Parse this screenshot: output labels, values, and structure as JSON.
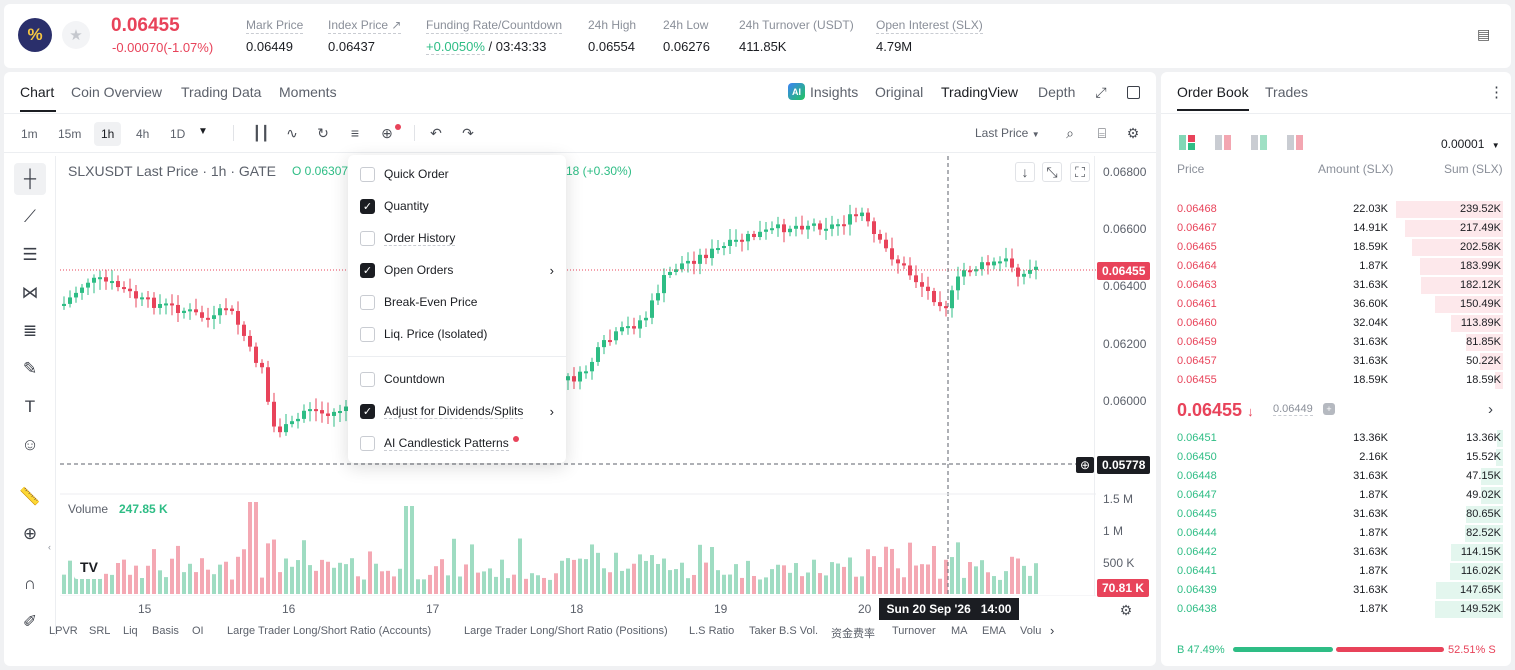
{
  "ticker": {
    "logo_glyph": "%",
    "last_price": "0.06455",
    "change": "-0.00070(-1.07%)",
    "stats": [
      {
        "label": "Mark Price",
        "value": "0.06449"
      },
      {
        "label": "Index Price ↗",
        "value": "0.06437"
      },
      {
        "label": "Funding Rate/Countdown",
        "value": "+0.0050%",
        "value2": " / 03:43:33"
      },
      {
        "label": "24h High",
        "value": "0.06554"
      },
      {
        "label": "24h Low",
        "value": "0.06276"
      },
      {
        "label": "24h Turnover (USDT)",
        "value": "411.85K"
      },
      {
        "label": "Open Interest (SLX)",
        "value": "4.79M"
      }
    ]
  },
  "chart_tabs": [
    "Chart",
    "Coin Overview",
    "Trading Data",
    "Moments"
  ],
  "view_tabs": {
    "insights": "Insights",
    "original": "Original",
    "tradingview": "TradingView",
    "depth": "Depth"
  },
  "timeframes": [
    "1m",
    "15m",
    "1h",
    "4h",
    "1D"
  ],
  "price_source": "Last Price",
  "legend": {
    "title": "SLXUSDT Last Price · 1h · GATE",
    "open": "O 0.06307",
    "change": "18 (+0.30%)"
  },
  "y_axis": [
    "0.06800",
    "0.06600",
    "0.06400",
    "0.06200",
    "0.06000",
    "0.05778"
  ],
  "current_price_tag": "0.06455",
  "crosshair_price_tag": "0.05778",
  "x_axis": [
    "15",
    "16",
    "17",
    "18",
    "19",
    "20"
  ],
  "crosshair_time": {
    "date": "Sun 20 Sep '26",
    "time": "14:00"
  },
  "volume": {
    "label": "Volume",
    "value": "247.85 K",
    "axis": [
      "1.5 M",
      "1 M",
      "500 K"
    ],
    "tag": "70.81 K"
  },
  "indicators": [
    "LPVR",
    "SRL",
    "Liq",
    "Basis",
    "OI",
    "Large Trader Long/Short Ratio (Accounts)",
    "Large Trader Long/Short Ratio (Positions)",
    "L.S Ratio",
    "Taker B.S Vol.",
    "资金费率",
    "Turnover",
    "MA",
    "EMA",
    "Volu"
  ],
  "menu": [
    {
      "label": "Quick Order",
      "checked": false,
      "arrow": false
    },
    {
      "label": "Quantity",
      "checked": true,
      "arrow": false
    },
    {
      "label": "Order History",
      "checked": false,
      "arrow": false
    },
    {
      "label": "Open Orders",
      "checked": true,
      "arrow": true
    },
    {
      "label": "Break-Even Price",
      "checked": false,
      "arrow": false
    },
    {
      "label": "Liq. Price (Isolated)",
      "checked": false,
      "arrow": false
    },
    {
      "label": "Countdown",
      "checked": false,
      "arrow": false
    },
    {
      "label": "Adjust for Dividends/Splits",
      "checked": true,
      "arrow": true
    },
    {
      "label": "AI Candlestick Patterns",
      "checked": false,
      "arrow": false
    }
  ],
  "orderbook": {
    "tabs": [
      "Order Book",
      "Trades"
    ],
    "precision": "0.00001",
    "headers": [
      "Price",
      "Amount (SLX)",
      "Sum (SLX)"
    ],
    "asks": [
      {
        "price": "0.06468",
        "amount": "22.03K",
        "sum": "239.52K",
        "depth": 0.93
      },
      {
        "price": "0.06467",
        "amount": "14.91K",
        "sum": "217.49K",
        "depth": 0.85
      },
      {
        "price": "0.06465",
        "amount": "18.59K",
        "sum": "202.58K",
        "depth": 0.79
      },
      {
        "price": "0.06464",
        "amount": "1.87K",
        "sum": "183.99K",
        "depth": 0.72
      },
      {
        "price": "0.06463",
        "amount": "31.63K",
        "sum": "182.12K",
        "depth": 0.71
      },
      {
        "price": "0.06461",
        "amount": "36.60K",
        "sum": "150.49K",
        "depth": 0.59
      },
      {
        "price": "0.06460",
        "amount": "32.04K",
        "sum": "113.89K",
        "depth": 0.45
      },
      {
        "price": "0.06459",
        "amount": "31.63K",
        "sum": "81.85K",
        "depth": 0.32
      },
      {
        "price": "0.06457",
        "amount": "31.63K",
        "sum": "50.22K",
        "depth": 0.2
      },
      {
        "price": "0.06455",
        "amount": "18.59K",
        "sum": "18.59K",
        "depth": 0.07
      }
    ],
    "mid_price": "0.06455",
    "mid_mark": "0.06449",
    "bids": [
      {
        "price": "0.06451",
        "amount": "13.36K",
        "sum": "13.36K",
        "depth": 0.05
      },
      {
        "price": "0.06450",
        "amount": "2.16K",
        "sum": "15.52K",
        "depth": 0.06
      },
      {
        "price": "0.06448",
        "amount": "31.63K",
        "sum": "47.15K",
        "depth": 0.19
      },
      {
        "price": "0.06447",
        "amount": "1.87K",
        "sum": "49.02K",
        "depth": 0.19
      },
      {
        "price": "0.06445",
        "amount": "31.63K",
        "sum": "80.65K",
        "depth": 0.32
      },
      {
        "price": "0.06444",
        "amount": "1.87K",
        "sum": "82.52K",
        "depth": 0.33
      },
      {
        "price": "0.06442",
        "amount": "31.63K",
        "sum": "114.15K",
        "depth": 0.45
      },
      {
        "price": "0.06441",
        "amount": "1.87K",
        "sum": "116.02K",
        "depth": 0.46
      },
      {
        "price": "0.06439",
        "amount": "31.63K",
        "sum": "147.65K",
        "depth": 0.58
      },
      {
        "price": "0.06438",
        "amount": "1.87K",
        "sum": "149.52K",
        "depth": 0.59
      }
    ],
    "buy_ratio": "B 47.49%",
    "sell_ratio": "52.51% S",
    "buy_fraction": 0.4749
  },
  "colors": {
    "up": "#2ebd85",
    "down": "#e8435a",
    "dark": "#1b1d22"
  }
}
